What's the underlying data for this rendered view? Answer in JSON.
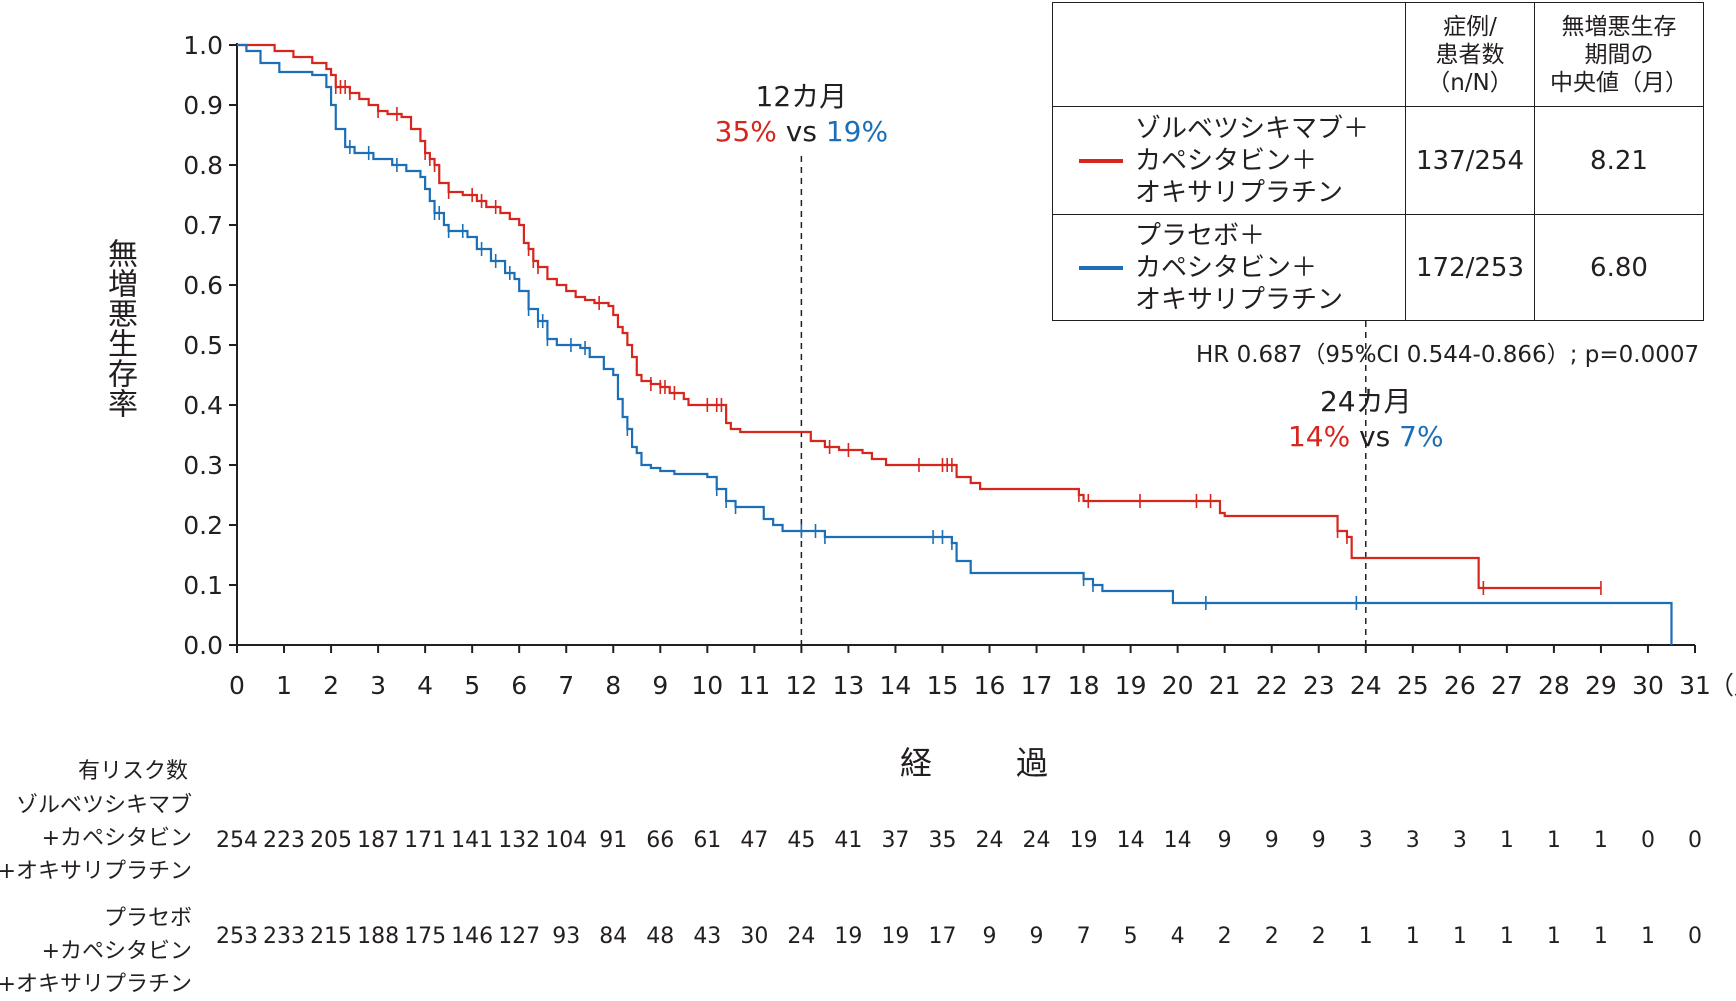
{
  "chart_data": {
    "type": "line",
    "ylabel": "無増悪生存率",
    "xlabel": "経　過",
    "x_unit": "（月）",
    "xlim": [
      0,
      31
    ],
    "ylim": [
      0.0,
      1.0
    ],
    "x_ticks": [
      "0",
      "1",
      "2",
      "3",
      "4",
      "5",
      "6",
      "7",
      "8",
      "9",
      "10",
      "11",
      "12",
      "13",
      "14",
      "15",
      "16",
      "17",
      "18",
      "19",
      "20",
      "21",
      "22",
      "23",
      "24",
      "25",
      "26",
      "27",
      "28",
      "29",
      "30",
      "31"
    ],
    "y_ticks": [
      "0.0",
      "0.1",
      "0.2",
      "0.3",
      "0.4",
      "0.5",
      "0.6",
      "0.7",
      "0.8",
      "0.9",
      "1.0"
    ],
    "series": [
      {
        "name_lines": [
          "ゾルベツシキマブ＋",
          "カペシタビン＋",
          "オキサリプラチン"
        ],
        "color": "#d7261e",
        "points": [
          [
            0,
            1.0
          ],
          [
            0.5,
            1.0
          ],
          [
            0.8,
            0.99
          ],
          [
            1.2,
            0.98
          ],
          [
            1.6,
            0.97
          ],
          [
            1.9,
            0.96
          ],
          [
            2.0,
            0.95
          ],
          [
            2.1,
            0.93
          ],
          [
            2.4,
            0.92
          ],
          [
            2.6,
            0.91
          ],
          [
            2.8,
            0.9
          ],
          [
            3.0,
            0.89
          ],
          [
            3.2,
            0.885
          ],
          [
            3.5,
            0.88
          ],
          [
            3.7,
            0.86
          ],
          [
            3.9,
            0.84
          ],
          [
            4.0,
            0.82
          ],
          [
            4.1,
            0.81
          ],
          [
            4.2,
            0.8
          ],
          [
            4.3,
            0.77
          ],
          [
            4.5,
            0.755
          ],
          [
            4.8,
            0.75
          ],
          [
            5.1,
            0.74
          ],
          [
            5.3,
            0.73
          ],
          [
            5.6,
            0.72
          ],
          [
            5.8,
            0.71
          ],
          [
            6.0,
            0.7
          ],
          [
            6.1,
            0.67
          ],
          [
            6.2,
            0.66
          ],
          [
            6.3,
            0.64
          ],
          [
            6.4,
            0.63
          ],
          [
            6.6,
            0.61
          ],
          [
            6.8,
            0.6
          ],
          [
            7.0,
            0.59
          ],
          [
            7.2,
            0.58
          ],
          [
            7.4,
            0.575
          ],
          [
            7.6,
            0.57
          ],
          [
            7.9,
            0.565
          ],
          [
            8.0,
            0.55
          ],
          [
            8.1,
            0.53
          ],
          [
            8.2,
            0.52
          ],
          [
            8.3,
            0.5
          ],
          [
            8.4,
            0.48
          ],
          [
            8.5,
            0.45
          ],
          [
            8.6,
            0.44
          ],
          [
            8.8,
            0.435
          ],
          [
            9.0,
            0.43
          ],
          [
            9.2,
            0.42
          ],
          [
            9.5,
            0.41
          ],
          [
            9.6,
            0.4
          ],
          [
            10.3,
            0.4
          ],
          [
            10.4,
            0.37
          ],
          [
            10.5,
            0.36
          ],
          [
            10.7,
            0.355
          ],
          [
            12.0,
            0.355
          ],
          [
            12.2,
            0.34
          ],
          [
            12.5,
            0.33
          ],
          [
            12.8,
            0.325
          ],
          [
            13.3,
            0.32
          ],
          [
            13.5,
            0.31
          ],
          [
            13.8,
            0.3
          ],
          [
            15.1,
            0.3
          ],
          [
            15.3,
            0.28
          ],
          [
            15.6,
            0.27
          ],
          [
            15.8,
            0.26
          ],
          [
            17.8,
            0.26
          ],
          [
            17.9,
            0.25
          ],
          [
            18.0,
            0.24
          ],
          [
            20.8,
            0.24
          ],
          [
            20.9,
            0.22
          ],
          [
            21.0,
            0.215
          ],
          [
            23.3,
            0.215
          ],
          [
            23.4,
            0.19
          ],
          [
            23.6,
            0.18
          ],
          [
            23.7,
            0.145
          ],
          [
            26.3,
            0.145
          ],
          [
            26.4,
            0.095
          ],
          [
            29.0,
            0.095
          ]
        ],
        "censors": [
          2.1,
          2.2,
          2.3,
          2.4,
          3.0,
          3.4,
          4.0,
          4.1,
          4.2,
          4.5,
          5.0,
          5.2,
          5.5,
          6.2,
          6.3,
          6.4,
          7.7,
          8.8,
          9.0,
          9.1,
          9.3,
          10.0,
          10.2,
          10.3,
          12.6,
          13.0,
          14.5,
          15.0,
          15.1,
          15.2,
          17.9,
          18.1,
          19.2,
          20.4,
          20.7,
          23.4,
          23.6,
          26.5,
          29.0
        ]
      },
      {
        "name_lines": [
          "プラセボ＋",
          "カペシタビン＋",
          "オキサリプラチン"
        ],
        "color": "#1c6fb7",
        "points": [
          [
            0,
            1.0
          ],
          [
            0.2,
            0.99
          ],
          [
            0.5,
            0.97
          ],
          [
            0.9,
            0.955
          ],
          [
            1.6,
            0.95
          ],
          [
            1.9,
            0.93
          ],
          [
            2.0,
            0.9
          ],
          [
            2.1,
            0.86
          ],
          [
            2.3,
            0.83
          ],
          [
            2.5,
            0.82
          ],
          [
            2.9,
            0.81
          ],
          [
            3.3,
            0.8
          ],
          [
            3.6,
            0.79
          ],
          [
            3.9,
            0.78
          ],
          [
            4.0,
            0.76
          ],
          [
            4.1,
            0.74
          ],
          [
            4.2,
            0.72
          ],
          [
            4.4,
            0.7
          ],
          [
            4.5,
            0.69
          ],
          [
            4.9,
            0.68
          ],
          [
            5.1,
            0.66
          ],
          [
            5.4,
            0.64
          ],
          [
            5.7,
            0.62
          ],
          [
            5.9,
            0.61
          ],
          [
            6.0,
            0.59
          ],
          [
            6.2,
            0.56
          ],
          [
            6.4,
            0.54
          ],
          [
            6.6,
            0.51
          ],
          [
            6.8,
            0.5
          ],
          [
            7.3,
            0.495
          ],
          [
            7.5,
            0.48
          ],
          [
            7.8,
            0.46
          ],
          [
            8.0,
            0.45
          ],
          [
            8.1,
            0.41
          ],
          [
            8.2,
            0.38
          ],
          [
            8.3,
            0.36
          ],
          [
            8.4,
            0.33
          ],
          [
            8.5,
            0.32
          ],
          [
            8.6,
            0.3
          ],
          [
            8.8,
            0.295
          ],
          [
            9.0,
            0.29
          ],
          [
            9.3,
            0.285
          ],
          [
            10.0,
            0.28
          ],
          [
            10.2,
            0.26
          ],
          [
            10.4,
            0.24
          ],
          [
            10.6,
            0.23
          ],
          [
            11.0,
            0.23
          ],
          [
            11.2,
            0.21
          ],
          [
            11.4,
            0.2
          ],
          [
            11.6,
            0.19
          ],
          [
            12.5,
            0.18
          ],
          [
            15.2,
            0.17
          ],
          [
            15.3,
            0.14
          ],
          [
            15.6,
            0.12
          ],
          [
            16.2,
            0.12
          ],
          [
            17.9,
            0.12
          ],
          [
            18.0,
            0.11
          ],
          [
            18.2,
            0.1
          ],
          [
            18.4,
            0.09
          ],
          [
            19.8,
            0.09
          ],
          [
            19.9,
            0.07
          ],
          [
            30.5,
            0.07
          ],
          [
            30.5,
            0.0
          ]
        ],
        "censors": [
          2.4,
          2.8,
          3.4,
          4.2,
          4.3,
          4.5,
          4.8,
          5.2,
          5.5,
          5.8,
          6.2,
          6.4,
          6.5,
          6.6,
          7.1,
          7.4,
          8.3,
          10.2,
          10.4,
          10.6,
          12.0,
          12.3,
          12.5,
          14.8,
          15.0,
          15.2,
          18.0,
          18.2,
          20.6,
          23.8
        ]
      }
    ]
  },
  "annotations": {
    "m12": {
      "title": "12カ月",
      "red": "35%",
      "vs": " vs ",
      "blue": "19%",
      "x": 12
    },
    "m24": {
      "title": "24カ月",
      "red": "14%",
      "vs": " vs ",
      "blue": "7%",
      "x": 24
    }
  },
  "legend_table": {
    "header_col2": [
      "症例/",
      "患者数",
      "（n/N）"
    ],
    "header_col3": [
      "無増悪生存",
      "期間の",
      "中央値（月）"
    ],
    "rows": [
      {
        "ratio": "137/254",
        "median": "8.21"
      },
      {
        "ratio": "172/253",
        "median": "6.80"
      }
    ]
  },
  "hr_text": "HR 0.687（95%CI 0.544-0.866）; p=0.0007",
  "risk_table": {
    "title": "有リスク数",
    "groups": [
      {
        "label_lines": [
          "ゾルベツシキマブ",
          "+カペシタビン",
          "+オキサリプラチン"
        ],
        "values": [
          "254",
          "223",
          "205",
          "187",
          "171",
          "141",
          "132",
          "104",
          "91",
          "66",
          "61",
          "47",
          "45",
          "41",
          "37",
          "35",
          "24",
          "24",
          "19",
          "14",
          "14",
          "9",
          "9",
          "9",
          "3",
          "3",
          "3",
          "1",
          "1",
          "1",
          "0",
          "0"
        ]
      },
      {
        "label_lines": [
          "プラセボ",
          "+カペシタビン",
          "+オキサリプラチン"
        ],
        "values": [
          "253",
          "233",
          "215",
          "188",
          "175",
          "146",
          "127",
          "93",
          "84",
          "48",
          "43",
          "30",
          "24",
          "19",
          "19",
          "17",
          "9",
          "9",
          "7",
          "5",
          "4",
          "2",
          "2",
          "2",
          "1",
          "1",
          "1",
          "1",
          "1",
          "1",
          "1",
          "0"
        ]
      }
    ]
  }
}
